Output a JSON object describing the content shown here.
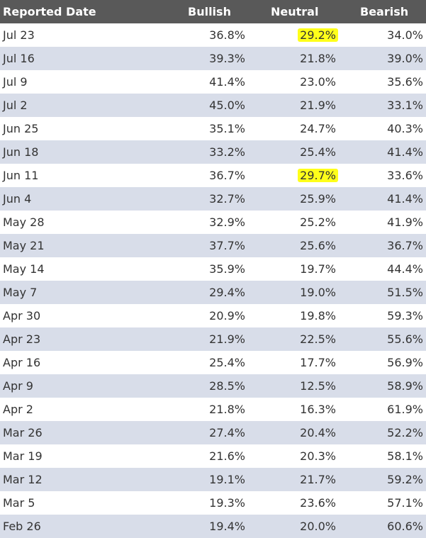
{
  "headers": [
    "Reported Date",
    "Bullish",
    "Neutral",
    "Bearish"
  ],
  "highlight_color": "#ffff1a",
  "rows": [
    {
      "date": "Jul 23",
      "bullish": "36.8%",
      "neutral": "29.2%",
      "bearish": "34.0%",
      "neutral_highlighted": true
    },
    {
      "date": "Jul 16",
      "bullish": "39.3%",
      "neutral": "21.8%",
      "bearish": "39.0%"
    },
    {
      "date": "Jul 9",
      "bullish": "41.4%",
      "neutral": "23.0%",
      "bearish": "35.6%"
    },
    {
      "date": "Jul 2",
      "bullish": "45.0%",
      "neutral": "21.9%",
      "bearish": "33.1%"
    },
    {
      "date": "Jun 25",
      "bullish": "35.1%",
      "neutral": "24.7%",
      "bearish": "40.3%"
    },
    {
      "date": "Jun 18",
      "bullish": "33.2%",
      "neutral": "25.4%",
      "bearish": "41.4%"
    },
    {
      "date": "Jun 11",
      "bullish": "36.7%",
      "neutral": "29.7%",
      "bearish": "33.6%",
      "neutral_highlighted": true
    },
    {
      "date": "Jun 4",
      "bullish": "32.7%",
      "neutral": "25.9%",
      "bearish": "41.4%"
    },
    {
      "date": "May 28",
      "bullish": "32.9%",
      "neutral": "25.2%",
      "bearish": "41.9%"
    },
    {
      "date": "May 21",
      "bullish": "37.7%",
      "neutral": "25.6%",
      "bearish": "36.7%"
    },
    {
      "date": "May 14",
      "bullish": "35.9%",
      "neutral": "19.7%",
      "bearish": "44.4%"
    },
    {
      "date": "May 7",
      "bullish": "29.4%",
      "neutral": "19.0%",
      "bearish": "51.5%"
    },
    {
      "date": "Apr 30",
      "bullish": "20.9%",
      "neutral": "19.8%",
      "bearish": "59.3%"
    },
    {
      "date": "Apr 23",
      "bullish": "21.9%",
      "neutral": "22.5%",
      "bearish": "55.6%"
    },
    {
      "date": "Apr 16",
      "bullish": "25.4%",
      "neutral": "17.7%",
      "bearish": "56.9%"
    },
    {
      "date": "Apr 9",
      "bullish": "28.5%",
      "neutral": "12.5%",
      "bearish": "58.9%"
    },
    {
      "date": "Apr 2",
      "bullish": "21.8%",
      "neutral": "16.3%",
      "bearish": "61.9%"
    },
    {
      "date": "Mar 26",
      "bullish": "27.4%",
      "neutral": "20.4%",
      "bearish": "52.2%"
    },
    {
      "date": "Mar 19",
      "bullish": "21.6%",
      "neutral": "20.3%",
      "bearish": "58.1%"
    },
    {
      "date": "Mar 12",
      "bullish": "19.1%",
      "neutral": "21.7%",
      "bearish": "59.2%"
    },
    {
      "date": "Mar 5",
      "bullish": "19.3%",
      "neutral": "23.6%",
      "bearish": "57.1%"
    },
    {
      "date": "Feb 26",
      "bullish": "19.4%",
      "neutral": "20.0%",
      "bearish": "60.6%"
    }
  ]
}
